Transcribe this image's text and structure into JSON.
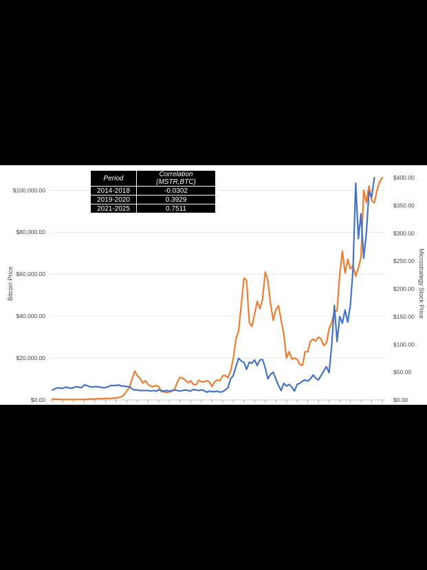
{
  "correlation_table": {
    "headers": [
      "Period",
      "Correlation (MSTR,BTC)"
    ],
    "rows": [
      [
        "2014-2018",
        "-0.0302"
      ],
      [
        "2019-2020",
        "0.3929"
      ],
      [
        "2021-2025",
        "0.7511"
      ]
    ]
  },
  "chart_data": {
    "type": "line",
    "ylabel": "Bitcoin Price",
    "y2label": "Microstrategy Stock Price",
    "ylim": [
      0,
      106000
    ],
    "y2lim": [
      0,
      400
    ],
    "yticks": [
      "$0.00",
      "$20,000.00",
      "$40,000.00",
      "$60,000.00",
      "$80,000.00",
      "$100,000.00"
    ],
    "y2ticks": [
      "$0.00",
      "$50.00",
      "$100.00",
      "$150.00",
      "$200.00",
      "$250.00",
      "$300.00",
      "$350.00",
      "$400.00"
    ],
    "grid": true,
    "legend": "none",
    "colors": {
      "bitcoin": "#ED7D31",
      "microstrategy": "#4472C4"
    },
    "series": [
      {
        "name": "",
        "axis": "left",
        "values": [
          450,
          400,
          350,
          300,
          250,
          240,
          230,
          230,
          240,
          260,
          250,
          280,
          330,
          400,
          450,
          430,
          450,
          580,
          620,
          610,
          680,
          720,
          750,
          900,
          1000,
          1200,
          1500,
          2500,
          4300,
          6000,
          10000,
          13800,
          11500,
          10200,
          8000,
          9200,
          7400,
          6600,
          6300,
          6900,
          6300,
          4000,
          3800,
          3600,
          3800,
          4100,
          5300,
          8500,
          10800,
          10300,
          9500,
          8200,
          9200,
          7400,
          7200,
          9400,
          8700,
          8600,
          9300,
          8600,
          6400,
          8700,
          9500,
          9200,
          11500,
          11700,
          10600,
          13800,
          19700,
          29000,
          33000,
          45000,
          58000,
          57000,
          37000,
          35000,
          41000,
          47000,
          43500,
          48000,
          61000,
          57000,
          46000,
          38000,
          43000,
          45000,
          38000,
          31000,
          20000,
          23000,
          19500,
          20000,
          19300,
          17000,
          16500,
          23000,
          23000,
          28000,
          29000,
          28000,
          30000,
          29000,
          26000,
          27000,
          34000,
          37000,
          42000,
          42500,
          60000,
          71000,
          60500,
          67000,
          62500,
          64000,
          59000,
          63000,
          68000,
          100000,
          94000,
          102000,
          95000,
          94000,
          100000,
          104000,
          106000
        ]
      },
      {
        "name": "",
        "axis": "right",
        "values": [
          18,
          20,
          22,
          21,
          21,
          23,
          22,
          21,
          22,
          24,
          23,
          22,
          27,
          26,
          24,
          23,
          24,
          24,
          23,
          22,
          22,
          24,
          26,
          26,
          26,
          27,
          25,
          25,
          24,
          24,
          20,
          18,
          18,
          17,
          17,
          17,
          17,
          16,
          17,
          16,
          18,
          17,
          16,
          17,
          16,
          17,
          18,
          17,
          16,
          17,
          18,
          17,
          16,
          19,
          18,
          17,
          18,
          17,
          14,
          16,
          15,
          15,
          16,
          14,
          15,
          18,
          22,
          38,
          44,
          60,
          75,
          70,
          68,
          55,
          68,
          66,
          72,
          62,
          72,
          73,
          58,
          38,
          46,
          50,
          38,
          26,
          17,
          30,
          25,
          28,
          23,
          16,
          28,
          30,
          34,
          36,
          34,
          38,
          45,
          39,
          36,
          44,
          52,
          60,
          49,
          100,
          170,
          105,
          150,
          138,
          162,
          140,
          170,
          235,
          390,
          290,
          335,
          255,
          300,
          375,
          365,
          400
        ]
      }
    ]
  }
}
